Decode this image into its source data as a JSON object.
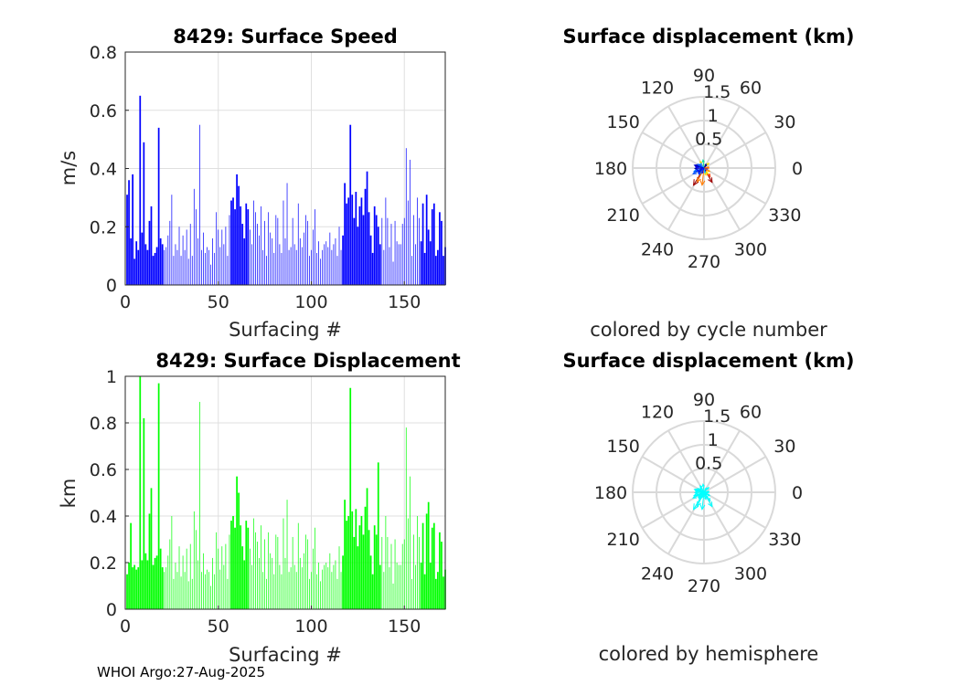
{
  "footer": "WHOI Argo:27-Aug-2025",
  "chart_data": [
    {
      "type": "bar",
      "title": "8429: Surface Speed",
      "xlabel": "Surfacing #",
      "ylabel": "m/s",
      "xlim": [
        0,
        172
      ],
      "ylim": [
        0,
        0.8
      ],
      "xticks": [
        0,
        50,
        100,
        150
      ],
      "yticks": [
        0,
        0.2,
        0.4,
        0.6,
        0.8
      ],
      "ytick_labels": [
        "0",
        "0.2",
        "0.4",
        "0.6",
        "0.8"
      ],
      "grid": true,
      "color": "#0000ff",
      "values": [
        0.31,
        0.36,
        0.16,
        0.38,
        0.09,
        0.15,
        0.12,
        0.65,
        0.18,
        0.49,
        0.14,
        0.12,
        0.22,
        0.27,
        0.1,
        0.11,
        0.13,
        0.54,
        0.16,
        0.14,
        0.12,
        0.13,
        0.17,
        0.22,
        0.31,
        0.1,
        0.14,
        0.12,
        0.2,
        0.1,
        0.17,
        0.12,
        0.19,
        0.09,
        0.21,
        0.1,
        0.33,
        0.26,
        0.16,
        0.55,
        0.12,
        0.18,
        0.11,
        0.13,
        0.12,
        0.07,
        0.16,
        0.11,
        0.25,
        0.19,
        0.13,
        0.19,
        0.14,
        0.2,
        0.1,
        0.24,
        0.29,
        0.3,
        0.26,
        0.38,
        0.34,
        0.27,
        0.21,
        0.16,
        0.28,
        0.26,
        0.19,
        0.14,
        0.29,
        0.25,
        0.21,
        0.17,
        0.27,
        0.12,
        0.22,
        0.1,
        0.25,
        0.18,
        0.16,
        0.11,
        0.24,
        0.23,
        0.14,
        0.11,
        0.29,
        0.16,
        0.35,
        0.12,
        0.13,
        0.23,
        0.14,
        0.12,
        0.28,
        0.16,
        0.13,
        0.18,
        0.24,
        0.22,
        0.1,
        0.12,
        0.19,
        0.26,
        0.11,
        0.15,
        0.09,
        0.12,
        0.14,
        0.15,
        0.13,
        0.18,
        0.12,
        0.14,
        0.16,
        0.1,
        0.2,
        0.12,
        0.17,
        0.35,
        0.28,
        0.3,
        0.55,
        0.31,
        0.23,
        0.32,
        0.2,
        0.27,
        0.3,
        0.24,
        0.33,
        0.39,
        0.25,
        0.17,
        0.11,
        0.27,
        0.24,
        0.2,
        0.14,
        0.23,
        0.12,
        0.3,
        0.23,
        0.13,
        0.21,
        0.08,
        0.22,
        0.15,
        0.14,
        0.14,
        0.21,
        0.23,
        0.47,
        0.29,
        0.43,
        0.1,
        0.24,
        0.14,
        0.3,
        0.23,
        0.15,
        0.28,
        0.11,
        0.31,
        0.19,
        0.15,
        0.26,
        0.28,
        0.1,
        0.12,
        0.25,
        0.22,
        0.1,
        0.13
      ]
    },
    {
      "type": "polar-quiver",
      "title": "Surface displacement (km)",
      "subtitle": "colored by cycle number",
      "r_ticks": [
        0.5,
        1,
        1.5
      ],
      "r_tick_labels": [
        "0.5",
        "1",
        "1.5"
      ],
      "r_max": 1.5,
      "theta_ticks": [
        0,
        30,
        60,
        90,
        120,
        150,
        180,
        210,
        240,
        270,
        300,
        330
      ],
      "color_scheme": "jet by cycle number",
      "vectors": [
        {
          "dx": -0.22,
          "dy": -0.36,
          "color": "#a00000"
        },
        {
          "dx": 0.17,
          "dy": -0.3,
          "color": "#a00000"
        },
        {
          "dx": -0.04,
          "dy": -0.36,
          "color": "#ff7a00"
        },
        {
          "dx": -0.14,
          "dy": -0.29,
          "color": "#ff7a00"
        },
        {
          "dx": 0.13,
          "dy": -0.18,
          "color": "#ff3a00"
        },
        {
          "dx": -0.08,
          "dy": 0.14,
          "color": "#ffd700"
        },
        {
          "dx": 0.1,
          "dy": 0.1,
          "color": "#ffd700"
        },
        {
          "dx": -0.02,
          "dy": 0.17,
          "color": "#00e0a0"
        },
        {
          "dx": 0.08,
          "dy": -0.12,
          "color": "#ffff00"
        },
        {
          "dx": 0.1,
          "dy": 0.02,
          "color": "#ff8800"
        },
        {
          "dx": 0.06,
          "dy": -0.05,
          "color": "#ff4000"
        },
        {
          "dx": -0.06,
          "dy": -0.12,
          "color": "#ffcc00"
        },
        {
          "dx": 0.05,
          "dy": 0.09,
          "color": "#c0ff40"
        },
        {
          "dx": -0.1,
          "dy": -0.06,
          "color": "#80ff80"
        },
        {
          "dx": -0.12,
          "dy": 0.05,
          "color": "#00ffc0"
        },
        {
          "dx": 0.12,
          "dy": -0.07,
          "color": "#ffa000"
        },
        {
          "dx": 0.04,
          "dy": -0.15,
          "color": "#ffe000"
        },
        {
          "dx": -0.21,
          "dy": -0.07,
          "color": "#0080ff"
        },
        {
          "dx": -0.23,
          "dy": -0.12,
          "color": "#0050ff"
        },
        {
          "dx": -0.18,
          "dy": 0.04,
          "color": "#0000cc"
        },
        {
          "dx": -0.19,
          "dy": -0.01,
          "color": "#0000aa"
        },
        {
          "dx": -0.17,
          "dy": 0.02,
          "color": "#0000ff"
        },
        {
          "dx": -0.16,
          "dy": -0.06,
          "color": "#0020ff"
        },
        {
          "dx": -0.14,
          "dy": 0.05,
          "color": "#00008b"
        },
        {
          "dx": -0.12,
          "dy": -0.1,
          "color": "#0000cc"
        },
        {
          "dx": -0.11,
          "dy": -0.13,
          "color": "#0040ff"
        },
        {
          "dx": -0.09,
          "dy": 0.07,
          "color": "#0000ff"
        },
        {
          "dx": 0.05,
          "dy": 0.06,
          "color": "#0000aa"
        },
        {
          "dx": 0.04,
          "dy": 0.08,
          "color": "#00008b"
        },
        {
          "dx": -0.06,
          "dy": 0.02,
          "color": "#0000ff"
        },
        {
          "dx": -0.08,
          "dy": -0.04,
          "color": "#0010e0"
        },
        {
          "dx": 0.07,
          "dy": -0.02,
          "color": "#0020ff"
        },
        {
          "dx": 0.03,
          "dy": -0.06,
          "color": "#0000cc"
        },
        {
          "dx": -0.13,
          "dy": 0.08,
          "color": "#0060ff"
        },
        {
          "dx": 0.02,
          "dy": -0.1,
          "color": "#00c0ff"
        },
        {
          "dx": -0.07,
          "dy": 0.1,
          "color": "#20a0ff"
        },
        {
          "dx": -0.1,
          "dy": 0.03,
          "color": "#00b0ff"
        },
        {
          "dx": 0.1,
          "dy": 0.0,
          "color": "#ff6000"
        },
        {
          "dx": -0.04,
          "dy": -0.11,
          "color": "#0000ff"
        },
        {
          "dx": -0.2,
          "dy": 0.06,
          "color": "#0000cc"
        }
      ]
    },
    {
      "type": "bar",
      "title": "8429: Surface Displacement",
      "xlabel": "Surfacing #",
      "ylabel": "km",
      "xlim": [
        0,
        172
      ],
      "ylim": [
        0,
        1.0
      ],
      "xticks": [
        0,
        50,
        100,
        150
      ],
      "yticks": [
        0,
        0.2,
        0.4,
        0.6,
        0.8,
        1
      ],
      "ytick_labels": [
        "0",
        "0.2",
        "0.4",
        "0.6",
        "0.8",
        "1"
      ],
      "grid": true,
      "color": "#00ff00",
      "values": [
        0.15,
        0.2,
        0.37,
        0.18,
        0.19,
        0.17,
        0.18,
        1.0,
        0.21,
        0.82,
        0.24,
        0.21,
        0.41,
        0.52,
        0.19,
        0.22,
        0.23,
        0.97,
        0.26,
        0.18,
        0.16,
        0.18,
        0.23,
        0.3,
        0.4,
        0.13,
        0.2,
        0.16,
        0.27,
        0.14,
        0.23,
        0.16,
        0.26,
        0.12,
        0.28,
        0.13,
        0.42,
        0.34,
        0.21,
        0.89,
        0.16,
        0.24,
        0.15,
        0.17,
        0.16,
        0.1,
        0.22,
        0.15,
        0.33,
        0.26,
        0.17,
        0.27,
        0.19,
        0.28,
        0.13,
        0.32,
        0.38,
        0.4,
        0.35,
        0.57,
        0.5,
        0.36,
        0.27,
        0.21,
        0.38,
        0.35,
        0.26,
        0.19,
        0.39,
        0.33,
        0.29,
        0.22,
        0.36,
        0.16,
        0.3,
        0.13,
        0.33,
        0.24,
        0.22,
        0.15,
        0.32,
        0.31,
        0.19,
        0.15,
        0.39,
        0.22,
        0.47,
        0.16,
        0.18,
        0.31,
        0.19,
        0.16,
        0.37,
        0.22,
        0.18,
        0.24,
        0.32,
        0.3,
        0.13,
        0.16,
        0.26,
        0.35,
        0.15,
        0.2,
        0.12,
        0.17,
        0.19,
        0.2,
        0.18,
        0.24,
        0.16,
        0.19,
        0.21,
        0.13,
        0.27,
        0.16,
        0.23,
        0.47,
        0.38,
        0.4,
        0.95,
        0.42,
        0.31,
        0.43,
        0.27,
        0.36,
        0.4,
        0.32,
        0.44,
        0.52,
        0.34,
        0.23,
        0.15,
        0.36,
        0.32,
        0.63,
        0.19,
        0.31,
        0.16,
        0.4,
        0.31,
        0.18,
        0.28,
        0.11,
        0.3,
        0.2,
        0.19,
        0.19,
        0.28,
        0.3,
        0.78,
        0.39,
        0.57,
        0.13,
        0.32,
        0.19,
        0.4,
        0.31,
        0.2,
        0.37,
        0.15,
        0.41,
        0.46,
        0.2,
        0.35,
        0.37,
        0.13,
        0.16,
        0.33,
        0.29,
        0.14,
        0.17
      ]
    },
    {
      "type": "polar-quiver",
      "title": "Surface displacement (km)",
      "subtitle": "colored by hemisphere",
      "r_ticks": [
        0.5,
        1,
        1.5
      ],
      "r_tick_labels": [
        "0.5",
        "1",
        "1.5"
      ],
      "r_max": 1.5,
      "theta_ticks": [
        0,
        30,
        60,
        90,
        120,
        150,
        180,
        210,
        240,
        270,
        300,
        330
      ],
      "color": "#00ffff",
      "vectors": [
        {
          "dx": -0.22,
          "dy": -0.36
        },
        {
          "dx": 0.17,
          "dy": -0.3
        },
        {
          "dx": -0.04,
          "dy": -0.36
        },
        {
          "dx": -0.14,
          "dy": -0.29
        },
        {
          "dx": 0.13,
          "dy": -0.18
        },
        {
          "dx": -0.08,
          "dy": 0.14
        },
        {
          "dx": 0.1,
          "dy": 0.1
        },
        {
          "dx": -0.02,
          "dy": 0.17
        },
        {
          "dx": 0.08,
          "dy": -0.12
        },
        {
          "dx": 0.1,
          "dy": 0.02
        },
        {
          "dx": 0.06,
          "dy": -0.05
        },
        {
          "dx": -0.06,
          "dy": -0.12
        },
        {
          "dx": 0.05,
          "dy": 0.09
        },
        {
          "dx": -0.1,
          "dy": -0.06
        },
        {
          "dx": -0.12,
          "dy": 0.05
        },
        {
          "dx": 0.12,
          "dy": -0.07
        },
        {
          "dx": 0.04,
          "dy": -0.15
        },
        {
          "dx": -0.21,
          "dy": -0.07
        },
        {
          "dx": -0.23,
          "dy": -0.12
        },
        {
          "dx": -0.18,
          "dy": 0.04
        },
        {
          "dx": -0.19,
          "dy": -0.01
        },
        {
          "dx": -0.17,
          "dy": 0.02
        },
        {
          "dx": -0.16,
          "dy": -0.06
        },
        {
          "dx": -0.14,
          "dy": 0.05
        },
        {
          "dx": -0.12,
          "dy": -0.1
        },
        {
          "dx": -0.11,
          "dy": -0.13
        },
        {
          "dx": -0.09,
          "dy": 0.07
        },
        {
          "dx": 0.05,
          "dy": 0.06
        },
        {
          "dx": 0.04,
          "dy": 0.08
        },
        {
          "dx": -0.06,
          "dy": 0.02
        },
        {
          "dx": -0.08,
          "dy": -0.04
        },
        {
          "dx": 0.07,
          "dy": -0.02
        },
        {
          "dx": 0.03,
          "dy": -0.06
        },
        {
          "dx": -0.13,
          "dy": 0.08
        },
        {
          "dx": 0.02,
          "dy": -0.1
        },
        {
          "dx": -0.07,
          "dy": 0.1
        },
        {
          "dx": -0.1,
          "dy": 0.03
        },
        {
          "dx": 0.1,
          "dy": 0.0
        },
        {
          "dx": -0.04,
          "dy": -0.11
        },
        {
          "dx": -0.2,
          "dy": 0.06
        }
      ]
    }
  ]
}
